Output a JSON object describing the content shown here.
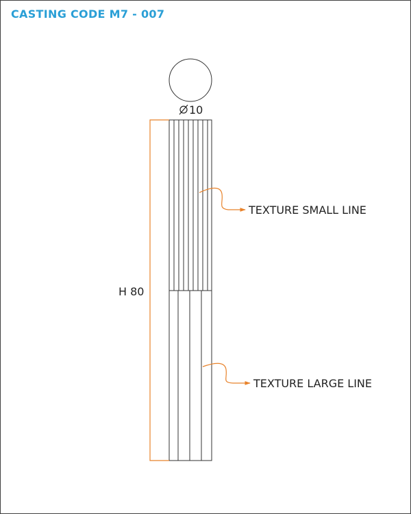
{
  "title": "CASTING CODE M7 - 007",
  "diameter_label": "10",
  "height_label": "H 80",
  "callouts": {
    "small": "TEXTURE SMALL LINE",
    "large": "TEXTURE LARGE LINE"
  },
  "colors": {
    "title": "#2a9fd6",
    "dimension": "#e8822a",
    "line": "#333333"
  },
  "icons": {
    "diameter": "diameter-symbol-icon"
  }
}
